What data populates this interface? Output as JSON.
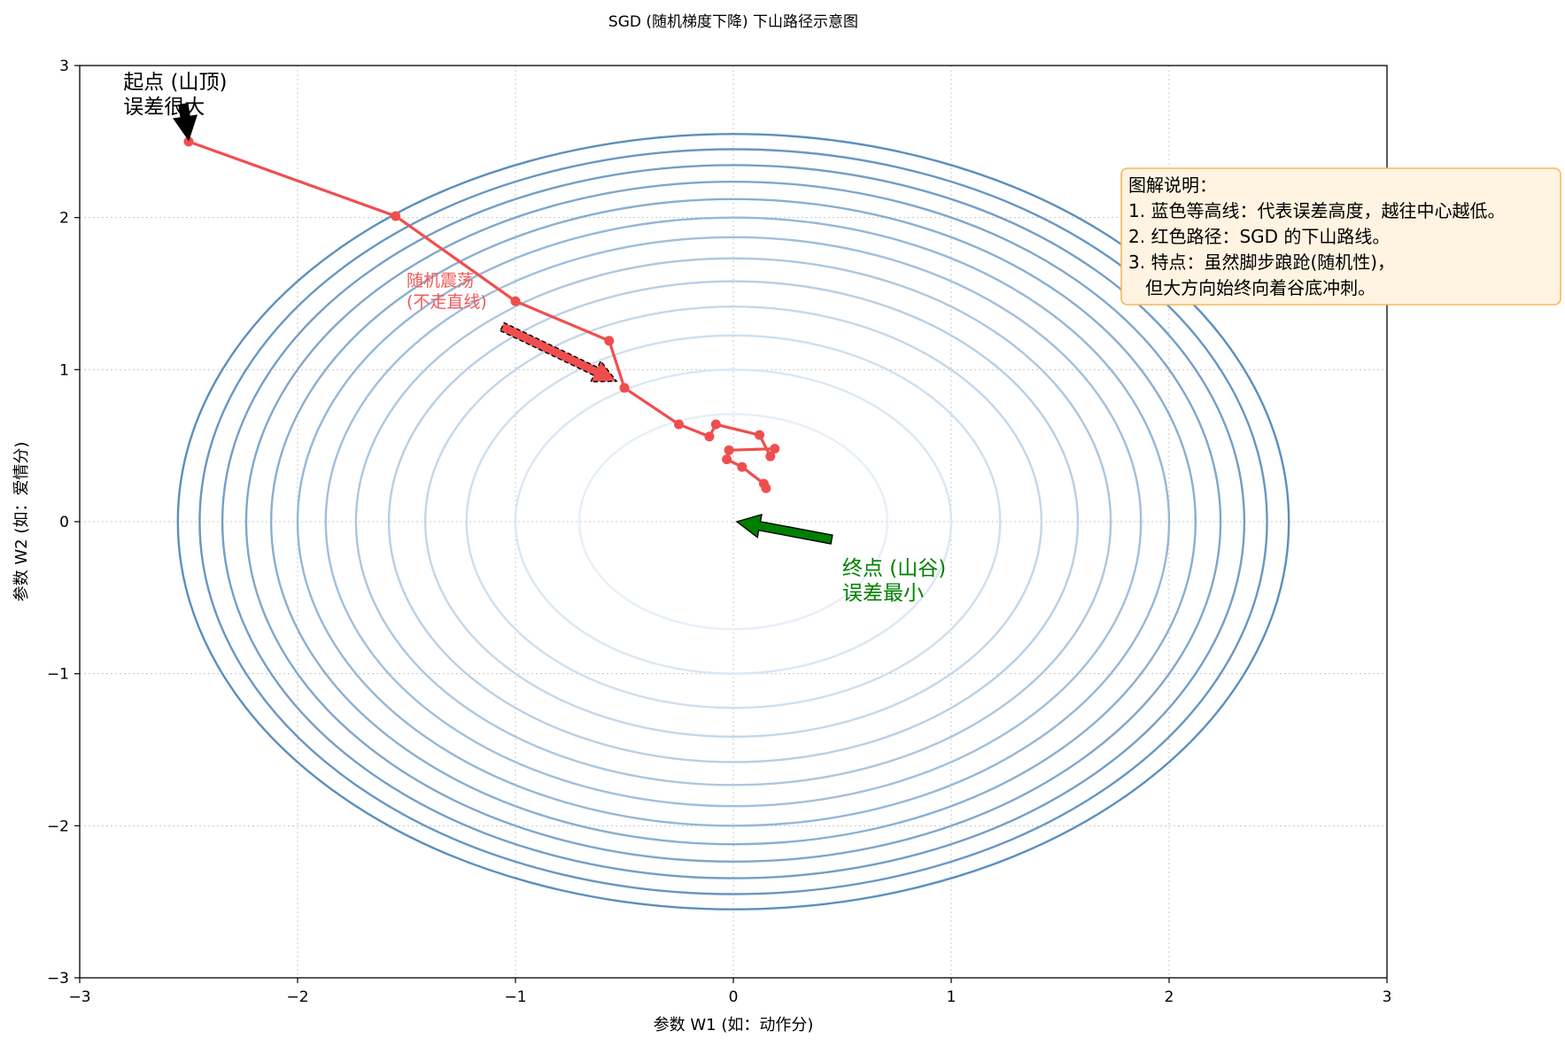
{
  "chart_data": {
    "type": "line",
    "title": "SGD (随机梯度下降) 下山路径示意图",
    "xlabel": "参数 W1 (如：动作分)",
    "ylabel": "参数 W2 (如：爱情分)",
    "xlim": [
      -3,
      3
    ],
    "ylim": [
      -3,
      3
    ],
    "xticks": [
      -3,
      -2,
      -1,
      0,
      1,
      2,
      3
    ],
    "yticks": [
      -3,
      -2,
      -1,
      0,
      1,
      2,
      3
    ],
    "xtick_labels": [
      "−3",
      "−2",
      "−1",
      "0",
      "1",
      "2",
      "3"
    ],
    "ytick_labels": [
      "−3",
      "−2",
      "−1",
      "0",
      "1",
      "2",
      "3"
    ],
    "grid": true,
    "contour_levels": [
      0.5,
      1,
      1.5,
      2,
      2.5,
      3,
      3.5,
      4,
      4.5,
      5,
      5.5,
      6,
      6.5
    ],
    "path": {
      "name": "SGD 路径",
      "color": "#f04e4e",
      "x": [
        -2.5,
        -1.55,
        -1.0,
        -0.57,
        -0.5,
        -0.25,
        -0.11,
        -0.08,
        0.12,
        0.17,
        0.19,
        -0.02,
        -0.03,
        0.04,
        0.14,
        0.15
      ],
      "y": [
        2.5,
        2.01,
        1.45,
        1.19,
        0.88,
        0.64,
        0.56,
        0.64,
        0.57,
        0.43,
        0.48,
        0.47,
        0.41,
        0.36,
        0.25,
        0.22
      ]
    },
    "annotations": {
      "start": {
        "line1": "起点 (山顶)",
        "line2": "误差很大",
        "point": [
          -2.5,
          2.5
        ],
        "text_at": [
          -2.8,
          2.85
        ]
      },
      "end": {
        "line1": "终点 (山谷)",
        "line2": "误差最小",
        "point": [
          0,
          0
        ],
        "text_at": [
          0.5,
          -0.35
        ]
      },
      "noise": {
        "line1": "随机震荡",
        "line2": "(不走直线)",
        "point": [
          -0.52,
          0.9
        ],
        "text_at": [
          -1.5,
          1.55
        ]
      }
    },
    "legend_box": {
      "position": "top-right",
      "lines": [
        "图解说明：",
        "1. 蓝色等高线：代表误差高度，越往中心越低。",
        "2. 红色路径：SGD 的下山路线。",
        "3. 特点：虽然脚步踉跄(随机性)，",
        "   但大方向始终向着谷底冲刺。"
      ]
    },
    "colors": {
      "contour_light": "#e6eff8",
      "contour_dark": "#5b8fbd",
      "path": "#f04e4e",
      "start_arrow": "#000000",
      "end_arrow": "#008000",
      "noise_text": "#f05a5a",
      "legend_face": "#fff3e1",
      "legend_edge": "#f7b85a"
    }
  }
}
